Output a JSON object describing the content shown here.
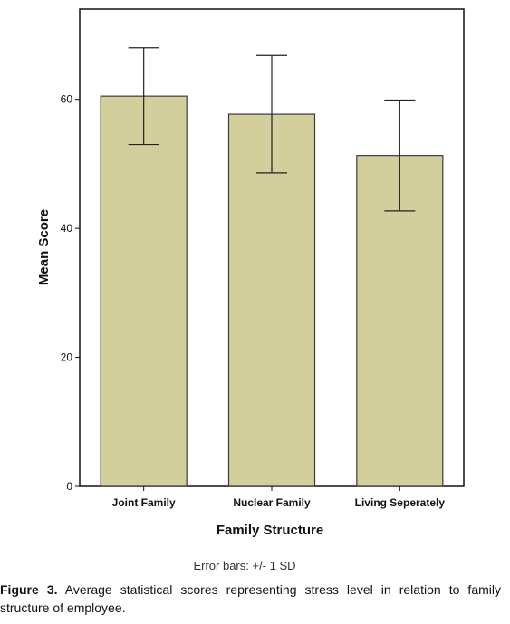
{
  "chart_data": {
    "type": "bar",
    "categories": [
      "Joint Family",
      "Nuclear Family",
      "Living Seperately"
    ],
    "values": [
      60.5,
      57.7,
      51.3
    ],
    "error_sd": [
      7.5,
      9.1,
      8.6
    ],
    "title": "",
    "xlabel": "Family Structure",
    "ylabel": "Mean Score",
    "ylim": [
      0,
      74
    ],
    "yticks": [
      0,
      20,
      40,
      60
    ],
    "error_note": "Error bars: +/- 1 SD",
    "grid": false,
    "legend": "none",
    "bar_color": "#d3cf9d",
    "bar_edge_color": "#3a3a3a"
  },
  "caption": {
    "label": "Figure 3.",
    "text": " Average statistical scores representing stress level in relation to family structure of employee."
  }
}
